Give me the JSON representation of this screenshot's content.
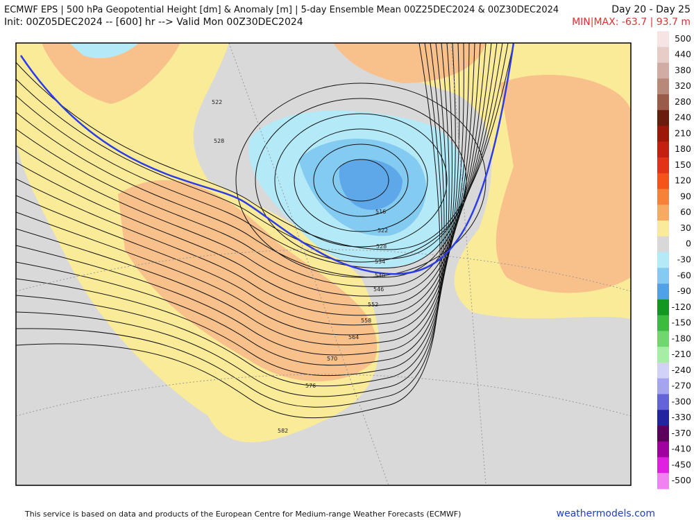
{
  "header": {
    "title": "ECMWF EPS | 500 hPa Geopotential Height [dm] & Anomaly [m] | 5-day Ensemble Mean 00Z25DEC2024 & 00Z30DEC2024",
    "period": "Day 20 - Day 25",
    "init": "Init: 00Z05DEC2024 -- [600] hr --> Valid Mon 00Z30DEC2024",
    "minmax": "MIN|MAX: -63.7 | 93.7 m"
  },
  "colorbar": {
    "labels": [
      "500",
      "440",
      "380",
      "320",
      "280",
      "240",
      "210",
      "180",
      "150",
      "120",
      "90",
      "60",
      "30",
      "0",
      "-30",
      "-60",
      "-90",
      "-120",
      "-150",
      "-180",
      "-210",
      "-240",
      "-270",
      "-300",
      "-330",
      "-370",
      "-410",
      "-450",
      "-500"
    ],
    "colors": [
      "#f6e4e4",
      "#e8ccc8",
      "#d0aca4",
      "#b88878",
      "#985c48",
      "#6c1c0c",
      "#9c1808",
      "#c42010",
      "#e03414",
      "#f45418",
      "#f68238",
      "#f8aa60",
      "#faeb98",
      "#d8d8d8",
      "#b4eaf8",
      "#84cbf2",
      "#50a2e8",
      "#129820",
      "#3cbc3c",
      "#6ed86e",
      "#a6eea6",
      "#d2d2f8",
      "#a4a4f0",
      "#6464d8",
      "#2424a0",
      "#5c005c",
      "#a000a0",
      "#e020e0",
      "#f282f2"
    ]
  },
  "contour_labels": [
    "522",
    "528",
    "516",
    "522",
    "528",
    "534",
    "540",
    "546",
    "552",
    "558",
    "564",
    "570",
    "576",
    "582"
  ],
  "footer": {
    "notice": "This service is based on data and products of the European Centre for Medium-range Weather Forecasts (ECMWF)",
    "site": "weathermodels.com"
  }
}
